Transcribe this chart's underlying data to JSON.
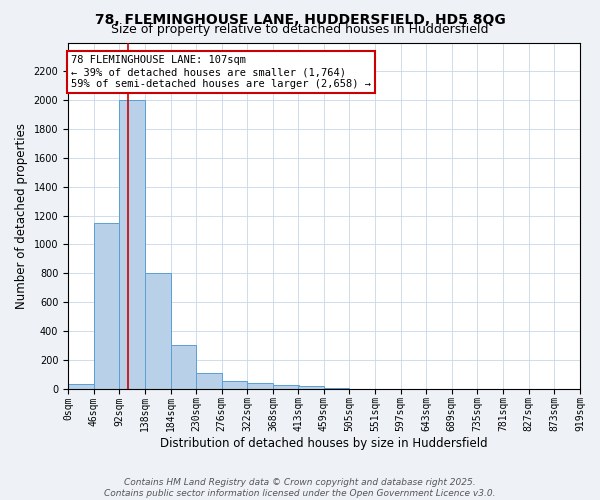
{
  "title": "78, FLEMINGHOUSE LANE, HUDDERSFIELD, HD5 8QG",
  "subtitle": "Size of property relative to detached houses in Huddersfield",
  "xlabel": "Distribution of detached houses by size in Huddersfield",
  "ylabel": "Number of detached properties",
  "bin_labels": [
    "0sqm",
    "46sqm",
    "92sqm",
    "138sqm",
    "184sqm",
    "230sqm",
    "276sqm",
    "322sqm",
    "368sqm",
    "413sqm",
    "459sqm",
    "505sqm",
    "551sqm",
    "597sqm",
    "643sqm",
    "689sqm",
    "735sqm",
    "781sqm",
    "827sqm",
    "873sqm",
    "919sqm"
  ],
  "bin_edges": [
    0,
    46,
    92,
    138,
    184,
    230,
    276,
    322,
    368,
    413,
    459,
    505,
    551,
    597,
    643,
    689,
    735,
    781,
    827,
    873,
    919
  ],
  "bar_heights": [
    35,
    1150,
    2000,
    800,
    300,
    105,
    50,
    38,
    22,
    15,
    5,
    0,
    0,
    0,
    0,
    0,
    0,
    0,
    0,
    0
  ],
  "bar_color": "#b8d0e8",
  "bar_edge_color": "#5a9fd4",
  "property_line_x": 107,
  "property_line_color": "#cc0000",
  "annotation_text": "78 FLEMINGHOUSE LANE: 107sqm\n← 39% of detached houses are smaller (1,764)\n59% of semi-detached houses are larger (2,658) →",
  "annotation_box_color": "#ffffff",
  "annotation_box_edge": "#cc0000",
  "ylim": [
    0,
    2400
  ],
  "yticks": [
    0,
    200,
    400,
    600,
    800,
    1000,
    1200,
    1400,
    1600,
    1800,
    2000,
    2200
  ],
  "footnote1": "Contains HM Land Registry data © Crown copyright and database right 2025.",
  "footnote2": "Contains public sector information licensed under the Open Government Licence v3.0.",
  "bg_color": "#eef2f7",
  "plot_bg_color": "#ffffff",
  "title_fontsize": 10,
  "subtitle_fontsize": 9,
  "axis_label_fontsize": 8.5,
  "tick_fontsize": 7,
  "annotation_fontsize": 7.5,
  "footnote_fontsize": 6.5
}
